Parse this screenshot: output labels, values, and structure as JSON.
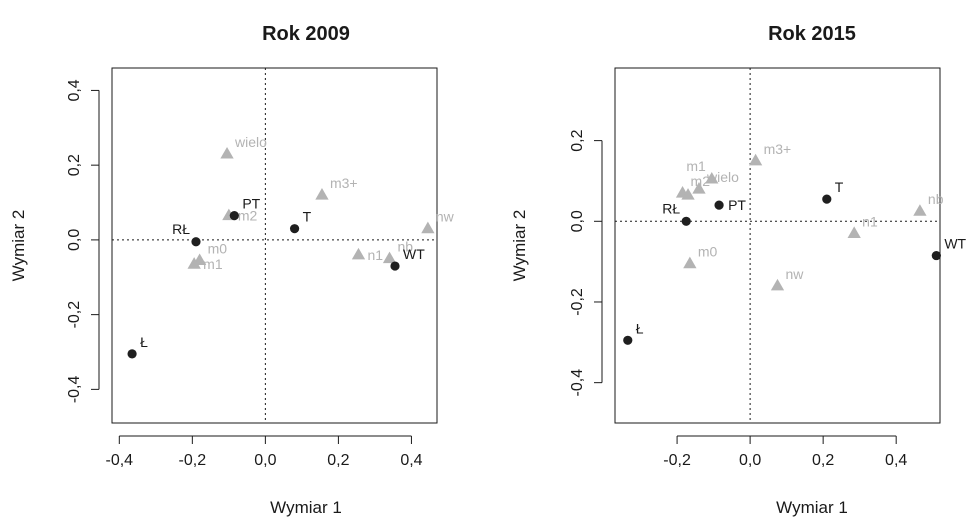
{
  "colors": {
    "group": "#1f1f1f",
    "category": "#b3b3b3",
    "axis": "#1a1a1a"
  },
  "chart_data": [
    {
      "type": "scatter",
      "title": "Rok 2009",
      "xlabel": "Wymiar 1",
      "ylabel": "Wymiar 2",
      "xlim": [
        -0.42,
        0.47
      ],
      "ylim": [
        -0.49,
        0.46
      ],
      "xticks": [
        {
          "v": -0.4,
          "t": "-0,4"
        },
        {
          "v": -0.2,
          "t": "-0,2"
        },
        {
          "v": 0.0,
          "t": "0,0"
        },
        {
          "v": 0.2,
          "t": "0,2"
        },
        {
          "v": 0.4,
          "t": "0,4"
        }
      ],
      "yticks": [
        {
          "v": -0.4,
          "t": "-0,4"
        },
        {
          "v": -0.2,
          "t": "-0,2"
        },
        {
          "v": 0.0,
          "t": "0,0"
        },
        {
          "v": 0.2,
          "t": "0,2"
        },
        {
          "v": 0.4,
          "t": "0,4"
        }
      ],
      "grid": false,
      "reference_lines": {
        "x": 0,
        "y": 0,
        "style": "dotted"
      },
      "series": [
        {
          "marker": "circle",
          "color": "#1f1f1f",
          "points": [
            {
              "label": "PT",
              "x": -0.085,
              "y": 0.065,
              "anchor": "ne"
            },
            {
              "label": "T",
              "x": 0.08,
              "y": 0.03,
              "anchor": "ne"
            },
            {
              "label": "RŁ",
              "x": -0.19,
              "y": -0.005,
              "anchor": "nw"
            },
            {
              "label": "WT",
              "x": 0.355,
              "y": -0.07,
              "anchor": "ne"
            },
            {
              "label": "Ł",
              "x": -0.365,
              "y": -0.305,
              "anchor": "ne"
            }
          ]
        },
        {
          "marker": "triangle",
          "color": "#b3b3b3",
          "points": [
            {
              "label": "wielo",
              "x": -0.105,
              "y": 0.23,
              "anchor": "ne"
            },
            {
              "label": "m3+",
              "x": 0.155,
              "y": 0.12,
              "anchor": "ne"
            },
            {
              "label": "m2",
              "x": -0.1,
              "y": 0.065,
              "anchor": "e"
            },
            {
              "label": "nw",
              "x": 0.445,
              "y": 0.03,
              "anchor": "ne"
            },
            {
              "label": "n1",
              "x": 0.255,
              "y": -0.04,
              "anchor": "e"
            },
            {
              "label": "nb",
              "x": 0.34,
              "y": -0.05,
              "anchor": "ne"
            },
            {
              "label": "m0",
              "x": -0.18,
              "y": -0.055,
              "anchor": "ne"
            },
            {
              "label": "m1",
              "x": -0.195,
              "y": -0.065,
              "anchor": "e"
            }
          ]
        }
      ]
    },
    {
      "type": "scatter",
      "title": "Rok 2015",
      "xlabel": "Wymiar 1",
      "ylabel": "Wymiar 2",
      "xlim": [
        -0.37,
        0.52
      ],
      "ylim": [
        -0.5,
        0.38
      ],
      "xticks": [
        {
          "v": -0.2,
          "t": "-0,2"
        },
        {
          "v": 0.0,
          "t": "0,0"
        },
        {
          "v": 0.2,
          "t": "0,2"
        },
        {
          "v": 0.4,
          "t": "0,4"
        }
      ],
      "yticks": [
        {
          "v": -0.4,
          "t": "-0,4"
        },
        {
          "v": -0.2,
          "t": "-0,2"
        },
        {
          "v": 0.0,
          "t": "0,0"
        },
        {
          "v": 0.2,
          "t": "0,2"
        }
      ],
      "grid": false,
      "reference_lines": {
        "x": 0,
        "y": 0,
        "style": "dotted"
      },
      "series": [
        {
          "marker": "circle",
          "color": "#1f1f1f",
          "points": [
            {
              "label": "T",
              "x": 0.21,
              "y": 0.055,
              "anchor": "ne"
            },
            {
              "label": "PT",
              "x": -0.085,
              "y": 0.04,
              "anchor": "e"
            },
            {
              "label": "RŁ",
              "x": -0.175,
              "y": 0.0,
              "anchor": "nw"
            },
            {
              "label": "WT",
              "x": 0.51,
              "y": -0.085,
              "anchor": "ne"
            },
            {
              "label": "Ł",
              "x": -0.335,
              "y": -0.295,
              "anchor": "ne"
            }
          ]
        },
        {
          "marker": "triangle",
          "color": "#b3b3b3",
          "points": [
            {
              "label": "m3+",
              "x": 0.015,
              "y": 0.15,
              "anchor": "ne"
            },
            {
              "label": "m1",
              "x": -0.105,
              "y": 0.105,
              "anchor": "nw"
            },
            {
              "label": "wielo",
              "x": -0.14,
              "y": 0.08,
              "anchor": "ne"
            },
            {
              "label": "m2",
              "x": -0.185,
              "y": 0.07,
              "anchor": "ne"
            },
            {
              "label": "",
              "x": -0.17,
              "y": 0.065,
              "anchor": "e"
            },
            {
              "label": "nb",
              "x": 0.465,
              "y": 0.025,
              "anchor": "ne"
            },
            {
              "label": "n1",
              "x": 0.285,
              "y": -0.03,
              "anchor": "ne"
            },
            {
              "label": "m0",
              "x": -0.165,
              "y": -0.105,
              "anchor": "ne"
            },
            {
              "label": "nw",
              "x": 0.075,
              "y": -0.16,
              "anchor": "ne"
            }
          ]
        }
      ]
    }
  ]
}
